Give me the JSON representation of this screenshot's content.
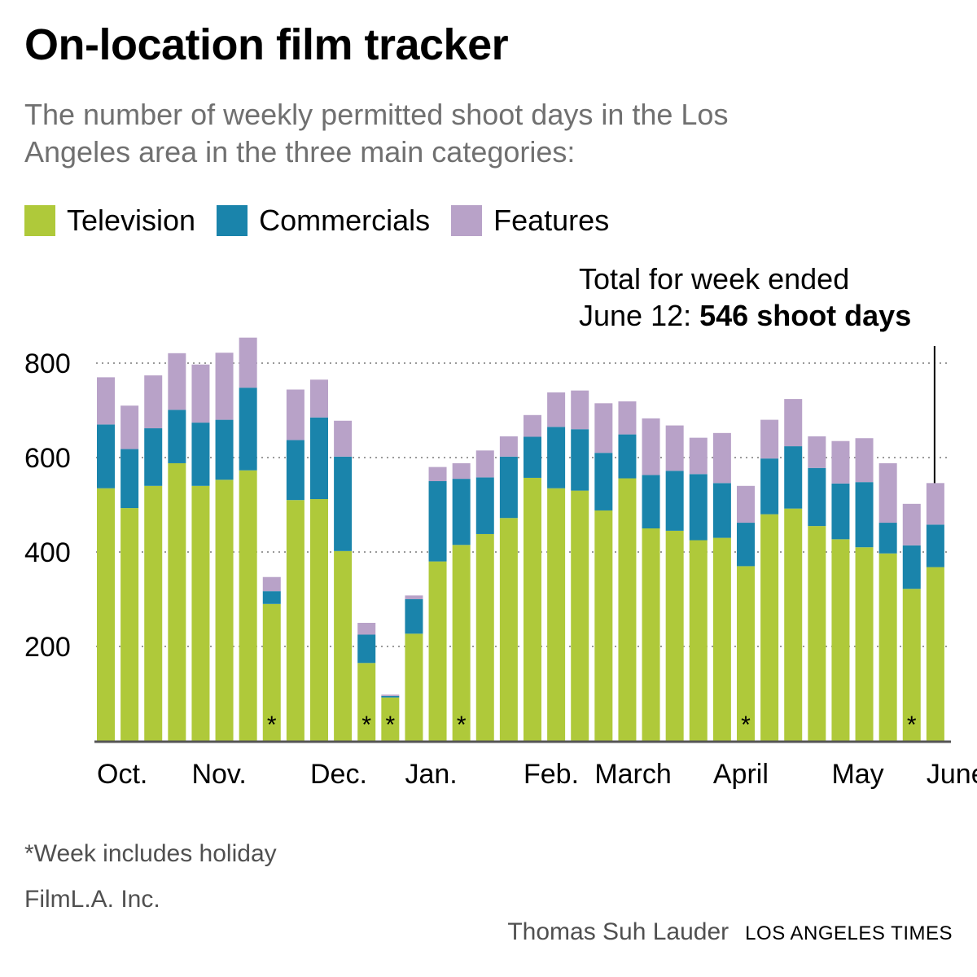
{
  "header": {
    "title": "On-location film tracker",
    "subtitle": "The number of weekly permitted shoot days in the Los Angeles area in the three main categories:"
  },
  "legend": [
    {
      "label": "Television",
      "color": "#afc93a"
    },
    {
      "label": "Commercials",
      "color": "#1a84ab"
    },
    {
      "label": "Features",
      "color": "#b8a2c8"
    }
  ],
  "annotation": {
    "line1": "Total for week ended",
    "line2_prefix": "June 12: ",
    "line2_bold": "546 shoot days"
  },
  "footer": {
    "footnote": "*Week includes holiday",
    "source": "FilmL.A. Inc.",
    "credit_name": "Thomas Suh Lauder",
    "credit_brand": "LOS ANGELES TIMES"
  },
  "chart_data": {
    "type": "bar",
    "stacked": true,
    "grid": true,
    "ylim": [
      0,
      860
    ],
    "yticks": [
      200,
      400,
      600,
      800
    ],
    "month_labels": [
      {
        "label": "Oct.",
        "bar_index": 0
      },
      {
        "label": "Nov.",
        "bar_index": 4
      },
      {
        "label": "Dec.",
        "bar_index": 9
      },
      {
        "label": "Jan.",
        "bar_index": 13
      },
      {
        "label": "Feb.",
        "bar_index": 18
      },
      {
        "label": "March",
        "bar_index": 21
      },
      {
        "label": "April",
        "bar_index": 26
      },
      {
        "label": "May",
        "bar_index": 31
      },
      {
        "label": "June",
        "bar_index": 35
      }
    ],
    "holiday_marker": "*",
    "holiday_weeks": [
      7,
      11,
      12,
      15,
      27,
      34
    ],
    "series": [
      {
        "name": "Television",
        "color": "#afc93a",
        "values": [
          535,
          493,
          540,
          588,
          540,
          553,
          573,
          290,
          510,
          512,
          402,
          165,
          92,
          227,
          380,
          415,
          438,
          472,
          557,
          535,
          530,
          488,
          556,
          450,
          445,
          425,
          430,
          370,
          480,
          492,
          455,
          427,
          410,
          397,
          322,
          368
        ]
      },
      {
        "name": "Commercials",
        "color": "#1a84ab",
        "values": [
          135,
          125,
          122,
          113,
          134,
          127,
          175,
          27,
          127,
          173,
          200,
          60,
          3,
          73,
          170,
          140,
          120,
          130,
          87,
          130,
          130,
          122,
          93,
          113,
          127,
          140,
          116,
          92,
          118,
          132,
          123,
          118,
          138,
          65,
          92,
          90
        ]
      },
      {
        "name": "Features",
        "color": "#b8a2c8",
        "values": [
          100,
          92,
          112,
          120,
          123,
          142,
          106,
          30,
          107,
          80,
          76,
          25,
          3,
          8,
          30,
          33,
          57,
          43,
          46,
          73,
          82,
          105,
          70,
          120,
          96,
          77,
          106,
          78,
          82,
          100,
          67,
          90,
          93,
          126,
          88,
          88
        ]
      }
    ]
  }
}
